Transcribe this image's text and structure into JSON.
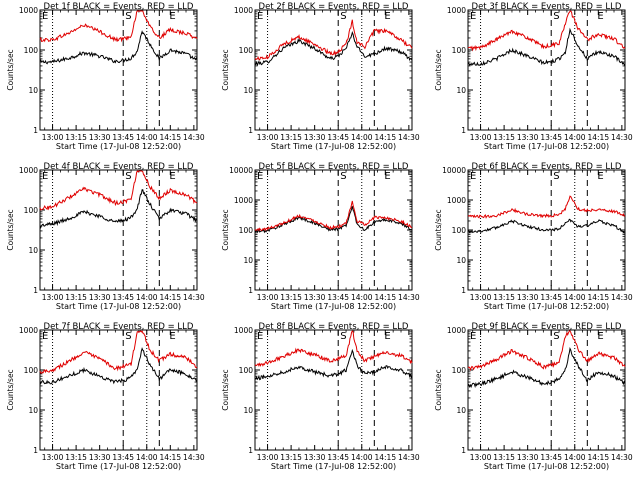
{
  "colors": {
    "events": "#000000",
    "lld": "#e00000",
    "axis": "#000000"
  },
  "common": {
    "xlabel": "Start Time (17-Jul-08 12:52:00)",
    "ylabel": "Counts/sec",
    "x_ticks": [
      "13:00",
      "13:15",
      "13:30",
      "13:45",
      "14:00",
      "14:15",
      "14:30"
    ],
    "marker_S": "S",
    "marker_E": "E",
    "vlines": {
      "dotted": [
        "13:00",
        "14:00"
      ],
      "dashed": [
        "13:45",
        "14:08"
      ]
    }
  },
  "chart_data": [
    {
      "type": "line",
      "title": "Det 1f BLACK = Events, RED = LLD",
      "xlabel": "Start Time (17-Jul-08 12:52:00)",
      "ylabel": "Counts/sec",
      "ylog": true,
      "ylim": [
        1,
        1000
      ],
      "y_ticks": [
        "1",
        "10",
        "100",
        "1000"
      ],
      "xlim": [
        "12:52",
        "14:32"
      ],
      "series": [
        {
          "name": "Events",
          "color": "#000000",
          "x": [
            "12:52",
            "13:00",
            "13:10",
            "13:20",
            "13:30",
            "13:40",
            "13:45",
            "13:50",
            "13:54",
            "13:57",
            "14:02",
            "14:08",
            "14:15",
            "14:25",
            "14:32"
          ],
          "y": [
            50,
            50,
            62,
            85,
            70,
            52,
            55,
            62,
            95,
            300,
            140,
            60,
            100,
            80,
            55
          ]
        },
        {
          "name": "LLD",
          "color": "#e00000",
          "x": [
            "12:52",
            "13:00",
            "13:10",
            "13:20",
            "13:30",
            "13:40",
            "13:45",
            "13:50",
            "13:54",
            "13:57",
            "14:02",
            "14:08",
            "14:15",
            "14:25",
            "14:32"
          ],
          "y": [
            180,
            180,
            260,
            420,
            290,
            180,
            190,
            220,
            1000,
            1000,
            380,
            200,
            320,
            260,
            190
          ]
        }
      ]
    },
    {
      "type": "line",
      "title": "Det 2f BLACK = Events, RED = LLD",
      "xlabel": "Start Time (17-Jul-08 12:52:00)",
      "ylabel": "Counts/sec",
      "ylog": true,
      "ylim": [
        1,
        1000
      ],
      "y_ticks": [
        "1",
        "10",
        "100",
        "1000"
      ],
      "xlim": [
        "12:52",
        "14:32"
      ],
      "series": [
        {
          "name": "Events",
          "color": "#000000",
          "x": [
            "12:52",
            "13:00",
            "13:10",
            "13:20",
            "13:30",
            "13:40",
            "13:45",
            "13:50",
            "13:54",
            "13:57",
            "14:02",
            "14:08",
            "14:15",
            "14:25",
            "14:32"
          ],
          "y": [
            45,
            50,
            110,
            170,
            110,
            60,
            70,
            110,
            260,
            120,
            70,
            80,
            110,
            90,
            55
          ]
        },
        {
          "name": "LLD",
          "color": "#e00000",
          "x": [
            "12:52",
            "13:00",
            "13:10",
            "13:20",
            "13:30",
            "13:40",
            "13:45",
            "13:50",
            "13:54",
            "13:57",
            "14:02",
            "14:08",
            "14:15",
            "14:25",
            "14:32"
          ],
          "y": [
            60,
            65,
            140,
            210,
            140,
            80,
            90,
            140,
            520,
            160,
            120,
            300,
            300,
            180,
            110
          ]
        }
      ]
    },
    {
      "type": "line",
      "title": "Det 3f BLACK = Events, RED = LLD",
      "xlabel": "Start Time (17-Jul-08 12:52:00)",
      "ylabel": "Counts/sec",
      "ylog": true,
      "ylim": [
        1,
        1000
      ],
      "y_ticks": [
        "1",
        "10",
        "100",
        "1000"
      ],
      "xlim": [
        "12:52",
        "14:32"
      ],
      "series": [
        {
          "name": "Events",
          "color": "#000000",
          "x": [
            "12:52",
            "13:00",
            "13:10",
            "13:20",
            "13:30",
            "13:40",
            "13:45",
            "13:50",
            "13:54",
            "13:57",
            "14:02",
            "14:08",
            "14:15",
            "14:25",
            "14:32"
          ],
          "y": [
            45,
            45,
            60,
            100,
            70,
            48,
            50,
            60,
            90,
            330,
            130,
            60,
            90,
            70,
            40
          ]
        },
        {
          "name": "LLD",
          "color": "#e00000",
          "x": [
            "12:52",
            "13:00",
            "13:10",
            "13:20",
            "13:30",
            "13:40",
            "13:45",
            "13:50",
            "13:54",
            "13:57",
            "14:02",
            "14:08",
            "14:15",
            "14:25",
            "14:32"
          ],
          "y": [
            110,
            115,
            180,
            300,
            200,
            120,
            130,
            150,
            450,
            1000,
            350,
            180,
            250,
            190,
            110
          ]
        }
      ]
    },
    {
      "type": "line",
      "title": "Det 4f BLACK = Events, RED = LLD",
      "xlabel": "Start Time (17-Jul-08 12:52:00)",
      "ylabel": "Counts/sec",
      "ylog": true,
      "ylim": [
        1,
        1000
      ],
      "y_ticks": [
        "1",
        "10",
        "100",
        "1000"
      ],
      "xlim": [
        "12:52",
        "14:32"
      ],
      "series": [
        {
          "name": "Events",
          "color": "#000000",
          "x": [
            "12:52",
            "13:00",
            "13:10",
            "13:20",
            "13:30",
            "13:40",
            "13:45",
            "13:50",
            "13:54",
            "13:57",
            "14:02",
            "14:08",
            "14:15",
            "14:25",
            "14:32"
          ],
          "y": [
            40,
            45,
            60,
            90,
            70,
            50,
            55,
            65,
            110,
            320,
            140,
            60,
            100,
            80,
            55
          ]
        },
        {
          "name": "LLD",
          "color": "#e00000",
          "x": [
            "12:52",
            "13:00",
            "13:10",
            "13:20",
            "13:30",
            "13:40",
            "13:45",
            "13:50",
            "13:54",
            "13:57",
            "14:02",
            "14:08",
            "14:15",
            "14:25",
            "14:32"
          ],
          "y": [
            110,
            120,
            200,
            340,
            240,
            150,
            160,
            190,
            1000,
            1000,
            380,
            200,
            310,
            240,
            150
          ]
        }
      ]
    },
    {
      "type": "line",
      "title": "Det 5f BLACK = Events, RED = LLD",
      "xlabel": "Start Time (17-Jul-08 12:52:00)",
      "ylabel": "Counts/sec",
      "ylog": true,
      "ylim": [
        1,
        10000
      ],
      "y_ticks": [
        "1",
        "10",
        "100",
        "1000",
        "10000"
      ],
      "xlim": [
        "12:52",
        "14:32"
      ],
      "series": [
        {
          "name": "Events",
          "color": "#000000",
          "x": [
            "12:52",
            "13:00",
            "13:10",
            "13:20",
            "13:30",
            "13:40",
            "13:45",
            "13:50",
            "13:54",
            "13:57",
            "14:02",
            "14:08",
            "14:15",
            "14:25",
            "14:32"
          ],
          "y": [
            90,
            95,
            150,
            260,
            170,
            100,
            110,
            140,
            600,
            160,
            100,
            180,
            220,
            170,
            100
          ]
        },
        {
          "name": "LLD",
          "color": "#e00000",
          "x": [
            "12:52",
            "13:00",
            "13:10",
            "13:20",
            "13:30",
            "13:40",
            "13:45",
            "13:50",
            "13:54",
            "13:57",
            "14:02",
            "14:08",
            "14:15",
            "14:25",
            "14:32"
          ],
          "y": [
            100,
            110,
            170,
            300,
            200,
            120,
            130,
            160,
            850,
            200,
            150,
            260,
            260,
            200,
            120
          ]
        }
      ]
    },
    {
      "type": "line",
      "title": "Det 6f BLACK = Events, RED = LLD",
      "xlabel": "Start Time (17-Jul-08 12:52:00)",
      "ylabel": "Counts/sec",
      "ylog": true,
      "ylim": [
        1,
        10000
      ],
      "y_ticks": [
        "1",
        "10",
        "100",
        "1000",
        "10000"
      ],
      "xlim": [
        "12:52",
        "14:32"
      ],
      "series": [
        {
          "name": "Events",
          "color": "#000000",
          "x": [
            "12:52",
            "13:00",
            "13:10",
            "13:20",
            "13:30",
            "13:40",
            "13:45",
            "13:50",
            "13:54",
            "13:57",
            "14:02",
            "14:08",
            "14:15",
            "14:25",
            "14:32"
          ],
          "y": [
            90,
            90,
            120,
            200,
            130,
            100,
            100,
            110,
            160,
            220,
            130,
            140,
            200,
            140,
            80
          ]
        },
        {
          "name": "LLD",
          "color": "#e00000",
          "x": [
            "12:52",
            "13:00",
            "13:10",
            "13:20",
            "13:30",
            "13:40",
            "13:45",
            "13:50",
            "13:54",
            "13:57",
            "14:02",
            "14:08",
            "14:15",
            "14:25",
            "14:32"
          ],
          "y": [
            280,
            280,
            300,
            480,
            330,
            300,
            300,
            320,
            500,
            1400,
            500,
            450,
            480,
            420,
            300
          ]
        }
      ]
    },
    {
      "type": "line",
      "title": "Det 7f BLACK = Events, RED = LLD",
      "xlabel": "Start Time (17-Jul-08 12:52:00)",
      "ylabel": "Counts/sec",
      "ylog": true,
      "ylim": [
        1,
        1000
      ],
      "y_ticks": [
        "1",
        "10",
        "100",
        "1000"
      ],
      "xlim": [
        "12:52",
        "14:32"
      ],
      "series": [
        {
          "name": "Events",
          "color": "#000000",
          "x": [
            "12:52",
            "13:00",
            "13:10",
            "13:20",
            "13:30",
            "13:40",
            "13:45",
            "13:50",
            "13:54",
            "13:57",
            "14:02",
            "14:08",
            "14:15",
            "14:25",
            "14:32"
          ],
          "y": [
            50,
            50,
            70,
            100,
            70,
            50,
            55,
            65,
            110,
            330,
            140,
            60,
            100,
            80,
            55
          ]
        },
        {
          "name": "LLD",
          "color": "#e00000",
          "x": [
            "12:52",
            "13:00",
            "13:10",
            "13:20",
            "13:30",
            "13:40",
            "13:45",
            "13:50",
            "13:54",
            "13:57",
            "14:02",
            "14:08",
            "14:15",
            "14:25",
            "14:32"
          ],
          "y": [
            90,
            100,
            160,
            280,
            190,
            110,
            120,
            140,
            900,
            1000,
            320,
            170,
            250,
            200,
            120
          ]
        }
      ]
    },
    {
      "type": "line",
      "title": "Det 8f BLACK = Events, RED = LLD",
      "xlabel": "Start Time (17-Jul-08 12:52:00)",
      "ylabel": "Counts/sec",
      "ylog": true,
      "ylim": [
        1,
        1000
      ],
      "y_ticks": [
        "1",
        "10",
        "100",
        "1000"
      ],
      "xlim": [
        "12:52",
        "14:32"
      ],
      "series": [
        {
          "name": "Events",
          "color": "#000000",
          "x": [
            "12:52",
            "13:00",
            "13:10",
            "13:20",
            "13:30",
            "13:40",
            "13:45",
            "13:50",
            "13:54",
            "13:57",
            "14:02",
            "14:08",
            "14:15",
            "14:25",
            "14:32"
          ],
          "y": [
            60,
            70,
            90,
            120,
            90,
            70,
            80,
            100,
            300,
            130,
            80,
            90,
            120,
            100,
            70
          ]
        },
        {
          "name": "LLD",
          "color": "#e00000",
          "x": [
            "12:52",
            "13:00",
            "13:10",
            "13:20",
            "13:30",
            "13:40",
            "13:45",
            "13:50",
            "13:54",
            "13:57",
            "14:02",
            "14:08",
            "14:15",
            "14:25",
            "14:32"
          ],
          "y": [
            130,
            150,
            220,
            320,
            240,
            170,
            190,
            230,
            1000,
            290,
            170,
            220,
            270,
            230,
            150
          ]
        }
      ]
    },
    {
      "type": "line",
      "title": "Det 9f BLACK = Events, RED = LLD",
      "xlabel": "Start Time (17-Jul-08 12:52:00)",
      "ylabel": "Counts/sec",
      "ylog": true,
      "ylim": [
        1,
        1000
      ],
      "y_ticks": [
        "1",
        "10",
        "100",
        "1000"
      ],
      "xlim": [
        "12:52",
        "14:32"
      ],
      "series": [
        {
          "name": "Events",
          "color": "#000000",
          "x": [
            "12:52",
            "13:00",
            "13:10",
            "13:20",
            "13:30",
            "13:40",
            "13:45",
            "13:50",
            "13:54",
            "13:57",
            "14:02",
            "14:08",
            "14:15",
            "14:25",
            "14:32"
          ],
          "y": [
            40,
            45,
            60,
            90,
            65,
            45,
            50,
            60,
            100,
            320,
            130,
            55,
            90,
            70,
            45
          ]
        },
        {
          "name": "LLD",
          "color": "#e00000",
          "x": [
            "12:52",
            "13:00",
            "13:10",
            "13:20",
            "13:30",
            "13:40",
            "13:45",
            "13:50",
            "13:54",
            "13:57",
            "14:02",
            "14:08",
            "14:15",
            "14:25",
            "14:32"
          ],
          "y": [
            110,
            120,
            180,
            300,
            200,
            120,
            130,
            150,
            700,
            1000,
            330,
            170,
            260,
            200,
            120
          ]
        }
      ]
    }
  ]
}
